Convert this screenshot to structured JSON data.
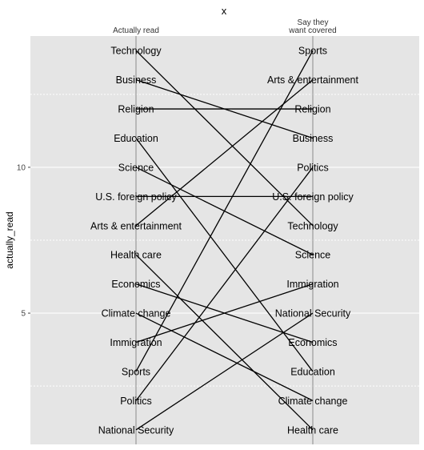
{
  "chart_data": {
    "type": "slope",
    "title": "x",
    "ylabel": "actually_read",
    "ylim": [
      0.5,
      14.5
    ],
    "yticks": [
      5,
      10
    ],
    "y_minor": [
      2.5,
      7.5,
      12.5
    ],
    "grid": true,
    "columns": [
      "Actually read",
      "Say they\nwant covered"
    ],
    "left_items": [
      {
        "topic": "Technology",
        "y": 14
      },
      {
        "topic": "Business",
        "y": 13
      },
      {
        "topic": "Religion",
        "y": 12
      },
      {
        "topic": "Education",
        "y": 11
      },
      {
        "topic": "Science",
        "y": 10
      },
      {
        "topic": "U.S. foreign policy",
        "y": 9
      },
      {
        "topic": "Arts & entertainment",
        "y": 8
      },
      {
        "topic": "Health care",
        "y": 7
      },
      {
        "topic": "Economics",
        "y": 6
      },
      {
        "topic": "Climate change",
        "y": 5
      },
      {
        "topic": "Immigration",
        "y": 4
      },
      {
        "topic": "Sports",
        "y": 3
      },
      {
        "topic": "Politics",
        "y": 2
      },
      {
        "topic": "National Security",
        "y": 1
      }
    ],
    "right_items": [
      {
        "topic": "Sports",
        "y": 14
      },
      {
        "topic": "Arts & entertainment",
        "y": 13
      },
      {
        "topic": "Religion",
        "y": 12
      },
      {
        "topic": "Business",
        "y": 11
      },
      {
        "topic": "Politics",
        "y": 10
      },
      {
        "topic": "U.S. foreign policy",
        "y": 9
      },
      {
        "topic": "Technology",
        "y": 8
      },
      {
        "topic": "Science",
        "y": 7
      },
      {
        "topic": "Immigration",
        "y": 6
      },
      {
        "topic": "National Security",
        "y": 5
      },
      {
        "topic": "Economics",
        "y": 4
      },
      {
        "topic": "Education",
        "y": 3
      },
      {
        "topic": "Climate change",
        "y": 2
      },
      {
        "topic": "Health care",
        "y": 1
      }
    ],
    "colors": {
      "panel": "#e5e5e5",
      "grid": "#ffffff",
      "line": "#000000",
      "axis": "#9a9a9a"
    }
  }
}
